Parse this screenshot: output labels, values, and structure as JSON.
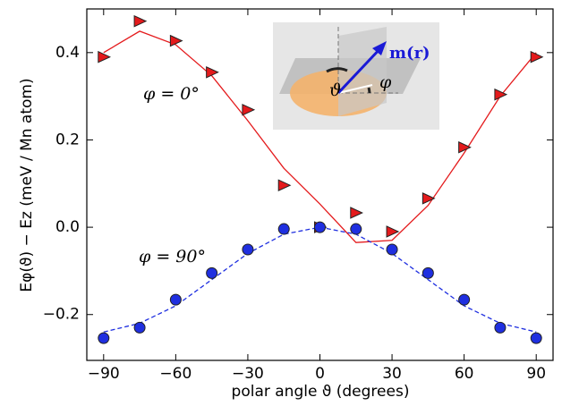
{
  "chart_data": {
    "type": "scatter",
    "x_label": "polar angle ϑ (degrees)",
    "y_label": "Eφ(ϑ) − Ez (meV / Mn atom)",
    "xlim": [
      -97,
      97
    ],
    "ylim": [
      -0.305,
      0.5
    ],
    "xticks": [
      {
        "value": -90,
        "label": "−90"
      },
      {
        "value": -60,
        "label": "−60"
      },
      {
        "value": -30,
        "label": "−30"
      },
      0,
      30,
      60,
      90
    ],
    "yticks": [
      {
        "value": -0.2,
        "label": "−0.2"
      },
      {
        "value": 0,
        "label": "0.0"
      },
      0.2,
      0.4
    ],
    "x": [
      -90,
      -75,
      -60,
      -45,
      -30,
      -15,
      0,
      15,
      30,
      45,
      60,
      75,
      90
    ],
    "series": [
      {
        "color": "#e41a1c",
        "marker": "triangle",
        "values": [
          0.39,
          0.472,
          0.427,
          0.355,
          0.269,
          0.096,
          0.0,
          0.033,
          -0.01,
          0.066,
          0.183,
          0.304,
          0.39
        ]
      },
      {
        "color": "#1f2fe0",
        "marker": "circle",
        "values": [
          -0.254,
          -0.23,
          -0.166,
          -0.105,
          -0.051,
          -0.004,
          0.0,
          -0.004,
          -0.051,
          -0.105,
          -0.166,
          -0.23,
          -0.254
        ]
      }
    ],
    "fit_x": [
      -90,
      -75,
      -60,
      -45,
      -30,
      -15,
      0,
      15,
      30,
      45,
      60,
      75,
      90
    ],
    "fits": [
      {
        "color": "#e41a1c",
        "dash": "solid",
        "values": [
          0.4,
          0.449,
          0.418,
          0.347,
          0.244,
          0.135,
          0.053,
          -0.035,
          -0.03,
          0.05,
          0.17,
          0.3,
          0.4
        ]
      },
      {
        "color": "#1f2fe0",
        "dash": "dashed",
        "values": [
          -0.24,
          -0.22,
          -0.18,
          -0.12,
          -0.06,
          -0.016,
          0.0,
          -0.016,
          -0.06,
          -0.12,
          -0.18,
          -0.22,
          -0.24
        ]
      }
    ],
    "annotations": [
      {
        "text": "φ = 0°"
      },
      {
        "text": "φ = 90°"
      }
    ],
    "inset": {
      "vector": "m(r)",
      "polar": "ϑ",
      "azimuth": "φ"
    }
  }
}
